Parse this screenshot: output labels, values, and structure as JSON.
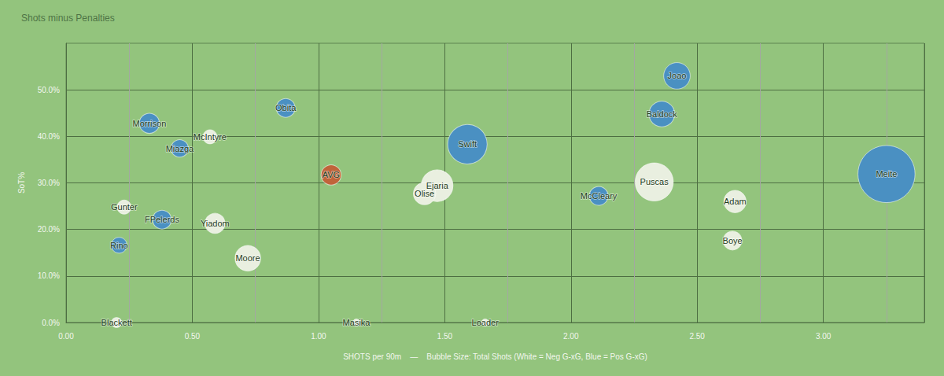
{
  "chart_data": {
    "type": "scatter",
    "title": "Shots minus Penalties",
    "xlabel": "SHOTS per 90m    —    Bubble Size: Total Shots (White = Neg G-xG, Blue = Pos G-xG)",
    "ylabel": "SoT%",
    "labels": [
      "Meite",
      "Swift",
      "Puscas",
      "Ejaria",
      "Joao",
      "Baldock",
      "Moore",
      "Olise",
      "Adam",
      "Morrison",
      "Yiadom",
      "AVG",
      "McCleary",
      "Obita",
      "FPelerds",
      "Boye",
      "Miazga",
      "Rino",
      "McIntyre",
      "Gunter",
      "Blackett",
      "Masika",
      "Loader"
    ],
    "x": [
      3.25,
      1.59,
      2.33,
      1.47,
      2.42,
      2.36,
      0.72,
      1.42,
      2.65,
      0.33,
      0.59,
      1.05,
      2.11,
      0.87,
      0.38,
      2.64,
      0.45,
      0.21,
      0.57,
      0.23,
      0.2,
      1.15,
      1.66
    ],
    "values": [
      31.9,
      38.3,
      30.2,
      29.4,
      53.0,
      44.8,
      13.8,
      27.7,
      26.0,
      42.8,
      21.3,
      31.7,
      27.2,
      46.1,
      22.1,
      17.6,
      37.4,
      16.6,
      39.9,
      24.8,
      0,
      0,
      0
    ],
    "sizes": [
      65,
      31,
      29,
      20,
      14,
      13,
      13,
      10,
      10,
      8,
      8,
      8,
      7,
      7,
      7,
      7,
      6,
      5,
      4,
      4,
      2,
      1,
      1
    ],
    "colors": [
      "#4a90c2",
      "#4a90c2",
      "#e9efe0",
      "#e9efe0",
      "#4a90c2",
      "#4a90c2",
      "#e9efe0",
      "#e9efe0",
      "#e9efe0",
      "#4a90c2",
      "#e9efe0",
      "#c0643a",
      "#4a90c2",
      "#4a90c2",
      "#4a90c2",
      "#e9efe0",
      "#4a90c2",
      "#4a90c2",
      "#e9efe0",
      "#e9efe0",
      "#e9efe0",
      "#e9efe0",
      "#e9efe0"
    ],
    "xlim": [
      0,
      3.4
    ],
    "xticks": [
      {
        "value": 0,
        "label": "0.00"
      },
      {
        "value": 0.5,
        "label": "0.50"
      },
      {
        "value": 1,
        "label": "1.00"
      },
      {
        "value": 1.5,
        "label": "1.50"
      },
      {
        "value": 2,
        "label": "2.00"
      },
      {
        "value": 2.5,
        "label": "2.50"
      },
      {
        "value": 3,
        "label": "3.00"
      }
    ],
    "ylim": [
      0,
      60
    ],
    "yticks": [
      {
        "value": 0,
        "label": "0.0%"
      },
      {
        "value": 10,
        "label": "10.0%"
      },
      {
        "value": 20,
        "label": "20.0%"
      },
      {
        "value": 30,
        "label": "30.0%"
      },
      {
        "value": 40,
        "label": "40.0%"
      },
      {
        "value": 50,
        "label": "50.0%"
      }
    ],
    "grid": true
  }
}
